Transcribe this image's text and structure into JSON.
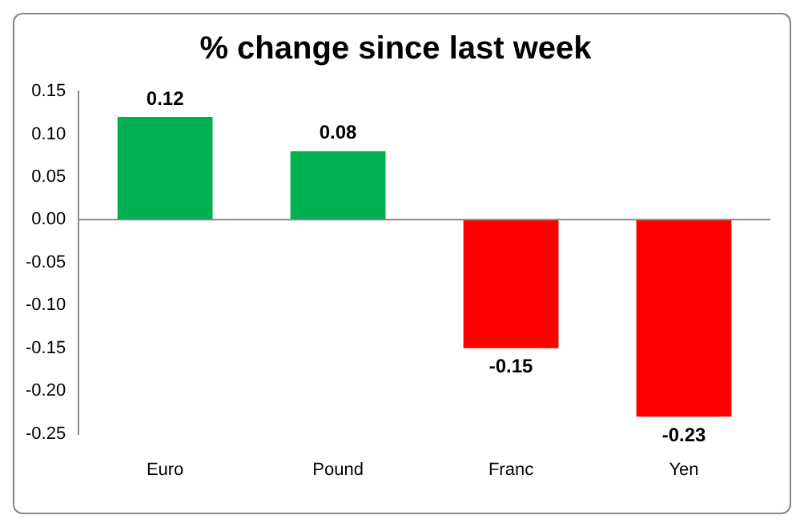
{
  "chart_data": {
    "type": "bar",
    "title": "% change since last week",
    "categories": [
      "Euro",
      "Pound",
      "Franc",
      "Yen"
    ],
    "values": [
      0.12,
      0.08,
      -0.15,
      -0.23
    ],
    "colors": [
      "#00b050",
      "#00b050",
      "#ff0000",
      "#ff0000"
    ],
    "ylim": [
      -0.25,
      0.15
    ],
    "yticks": [
      {
        "value": -0.25,
        "label": "-0.25"
      },
      {
        "value": -0.2,
        "label": "-0.20"
      },
      {
        "value": -0.15,
        "label": "-0.15"
      },
      {
        "value": -0.1,
        "label": "-0.10"
      },
      {
        "value": -0.05,
        "label": "-0.05"
      },
      {
        "value": 0,
        "label": "0.00"
      },
      {
        "value": 0.05,
        "label": "0.05"
      },
      {
        "value": 0.1,
        "label": "0.10"
      },
      {
        "value": 0.15,
        "label": "0.15"
      }
    ],
    "ref_lines": [
      {
        "axis": "y",
        "value": 0,
        "color": "#888888"
      }
    ],
    "data_labels": true,
    "grid": false,
    "legend": false
  }
}
